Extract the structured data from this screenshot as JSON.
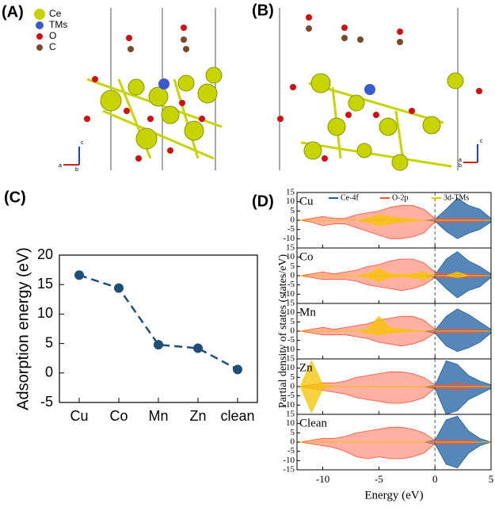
{
  "structures": [
    {
      "label": "(A)",
      "legend": [
        "Ce",
        "TMs",
        "O",
        "C"
      ],
      "axes": [
        "a",
        "b",
        "c"
      ]
    },
    {
      "label": "(B)",
      "axes": [
        "a",
        "b",
        "c"
      ]
    }
  ],
  "chart_data": [
    {
      "type": "line",
      "title": "(C)",
      "ylabel": "Adsorption energy (eV)",
      "categories": [
        "Cu",
        "Co",
        "Mn",
        "Zn",
        "clean"
      ],
      "values": [
        16.6,
        14.4,
        4.8,
        4.2,
        0.6
      ],
      "color": "#1f4e79",
      "ylim": [
        -5,
        20
      ],
      "yticks": [
        -5,
        0,
        5,
        10,
        15,
        20
      ]
    },
    {
      "type": "pdos",
      "title": "(D)",
      "xlabel": "Energy (eV)",
      "ylabel": "Partial density of states (states/eV)",
      "xlim": [
        -12.3,
        5
      ],
      "xticks": [
        -10,
        -5,
        0,
        5
      ],
      "ylim": [
        -15,
        15
      ],
      "yticks": [
        -15,
        -10,
        -5,
        0,
        5,
        10,
        15
      ],
      "series": [
        {
          "name": "Ce-4f",
          "color": "#1f5fa0"
        },
        {
          "name": "O-2p",
          "color": "#ff5030"
        },
        {
          "name": "3d-TMs",
          "color": "#f5c400"
        }
      ],
      "x": [
        -12,
        -11,
        -10,
        -9,
        -8,
        -7,
        -6,
        -5,
        -4,
        -3,
        -2,
        -1,
        0,
        1,
        2,
        3,
        4,
        5
      ],
      "subplots": [
        {
          "label": "Cu",
          "data": [
            {
              "up": [
                0,
                0,
                0,
                0,
                0,
                0,
                0,
                0,
                0,
                0,
                0,
                0,
                0.5,
                6,
                12,
                8,
                6,
                1
              ],
              "down": [
                0,
                0,
                0,
                0,
                0,
                0,
                0,
                0,
                0,
                0,
                0,
                0,
                -0.5,
                -6,
                -10,
                -7,
                -5,
                -1
              ]
            },
            {
              "up": [
                0,
                1,
                2,
                1,
                1,
                3,
                4,
                5,
                7,
                8,
                8,
                6,
                1,
                1,
                1,
                1,
                0.5,
                0
              ],
              "down": [
                0,
                -1,
                -3,
                -2,
                -2,
                -4,
                -6,
                -8,
                -10,
                -10,
                -9,
                -7,
                -1,
                -1,
                -1,
                -1,
                -0.5,
                0
              ]
            },
            {
              "up": [
                0,
                0,
                0,
                0,
                0,
                0,
                1,
                3,
                2,
                1,
                0.5,
                0,
                0,
                0,
                0,
                0,
                0,
                0
              ],
              "down": [
                0,
                0,
                0,
                0,
                0,
                0,
                -1,
                -3,
                -2,
                -1,
                -0.5,
                0,
                0,
                0,
                0,
                0,
                0,
                0
              ]
            }
          ]
        },
        {
          "label": "Co",
          "data": [
            {
              "up": [
                0,
                0,
                0,
                0,
                0,
                0,
                0,
                0,
                0,
                0,
                0,
                0,
                0.5,
                9,
                13,
                8,
                5,
                1
              ],
              "down": [
                0,
                0,
                0,
                0,
                0,
                0,
                0,
                0,
                0,
                0,
                0,
                0,
                -1,
                -7,
                -12,
                -8,
                -6,
                -1
              ]
            },
            {
              "up": [
                0,
                1,
                2,
                1,
                2,
                3,
                5,
                6,
                8,
                9,
                9,
                7,
                2,
                1,
                1,
                1,
                0.5,
                0
              ],
              "down": [
                0,
                -1,
                -2,
                -2,
                -2,
                -3,
                -5,
                -6,
                -7,
                -8,
                -7,
                -5,
                -1,
                -1,
                -1,
                -1,
                -0.5,
                0
              ]
            },
            {
              "up": [
                0,
                0,
                0,
                0,
                0,
                0,
                1,
                4,
                1,
                0.5,
                1,
                2,
                0,
                0,
                2,
                0,
                0,
                0
              ],
              "down": [
                0,
                0,
                0,
                0,
                0,
                0,
                -1,
                -3,
                -1,
                -0.5,
                -1,
                -2,
                0,
                0,
                -1,
                0,
                0,
                0
              ]
            }
          ]
        },
        {
          "label": "Mn",
          "data": [
            {
              "up": [
                0,
                0,
                0,
                0,
                0,
                0,
                0,
                0,
                0,
                0,
                0,
                0,
                0.5,
                8,
                12,
                9,
                5,
                1
              ],
              "down": [
                0,
                0,
                0,
                0,
                0,
                0,
                0,
                0,
                0,
                0,
                0,
                0,
                -1,
                -8,
                -11,
                -9,
                -6,
                -1
              ]
            },
            {
              "up": [
                0,
                1,
                2,
                1,
                2,
                3,
                4,
                6,
                7,
                8,
                8,
                6,
                1,
                1,
                1,
                1,
                0.5,
                0
              ],
              "down": [
                0,
                -1,
                -2,
                -2,
                -2,
                -3,
                -4,
                -6,
                -7,
                -8,
                -7,
                -5,
                -1,
                -1,
                -1,
                -1,
                -0.5,
                0
              ]
            },
            {
              "up": [
                0,
                0,
                0,
                0,
                0,
                0,
                1,
                8,
                2,
                1,
                0.5,
                0,
                0,
                0,
                0,
                0,
                0,
                0
              ],
              "down": [
                0,
                0,
                0,
                0,
                0,
                0,
                -1,
                -2,
                -1,
                -0.5,
                0,
                0,
                0,
                0,
                0,
                0,
                0,
                0
              ]
            }
          ]
        },
        {
          "label": "Zn",
          "data": [
            {
              "up": [
                0,
                0,
                0,
                0,
                0,
                0,
                0,
                0,
                0,
                0,
                0,
                0,
                0.5,
                14,
                12,
                6,
                3,
                1
              ],
              "down": [
                0,
                0,
                0,
                0,
                0,
                0,
                0,
                0,
                0,
                0,
                0,
                0,
                -1,
                -15,
                -13,
                -7,
                -4,
                -1
              ]
            },
            {
              "up": [
                0,
                1,
                2,
                2,
                3,
                5,
                6,
                7,
                8,
                8,
                7,
                5,
                1,
                1,
                2,
                1,
                0.5,
                0
              ],
              "down": [
                0,
                -1,
                -2,
                -3,
                -4,
                -6,
                -7,
                -8,
                -9,
                -9,
                -8,
                -6,
                -1,
                -1,
                -2,
                -1,
                -0.5,
                0
              ]
            },
            {
              "up": [
                0,
                14,
                1,
                0,
                0,
                0,
                0,
                0,
                0,
                0,
                0,
                0,
                0,
                0,
                0,
                0,
                0,
                0
              ],
              "down": [
                0,
                -14,
                -1,
                0,
                0,
                0,
                0,
                0,
                0,
                0,
                0,
                0,
                0,
                0,
                0,
                0,
                0,
                0
              ]
            }
          ]
        },
        {
          "label": "Clean",
          "data": [
            {
              "up": [
                0,
                0,
                0,
                0,
                0,
                0,
                0,
                0,
                0,
                0,
                0,
                0,
                1,
                12,
                14,
                6,
                2,
                0
              ],
              "down": [
                0,
                0,
                0,
                0,
                0,
                0,
                0,
                0,
                0,
                0,
                0,
                0,
                -1,
                -12,
                -14,
                -6,
                -2,
                0
              ]
            },
            {
              "up": [
                0,
                1,
                2,
                2,
                3,
                5,
                6,
                7,
                8,
                8,
                7,
                5,
                1,
                1,
                1,
                1,
                0,
                0
              ],
              "down": [
                0,
                -1,
                -2,
                -3,
                -5,
                -8,
                -9,
                -8,
                -9,
                -9,
                -8,
                -6,
                -1,
                -1,
                -1,
                -1,
                0,
                0
              ]
            },
            {
              "up": [
                0,
                0,
                0,
                0,
                0,
                0,
                0,
                0,
                0,
                0,
                0,
                0,
                0,
                0,
                0,
                0,
                0,
                0
              ],
              "down": [
                0,
                0,
                0,
                0,
                0,
                0,
                0,
                0,
                0,
                0,
                0,
                0,
                0,
                0,
                0,
                0,
                0,
                0
              ]
            }
          ]
        }
      ]
    }
  ]
}
